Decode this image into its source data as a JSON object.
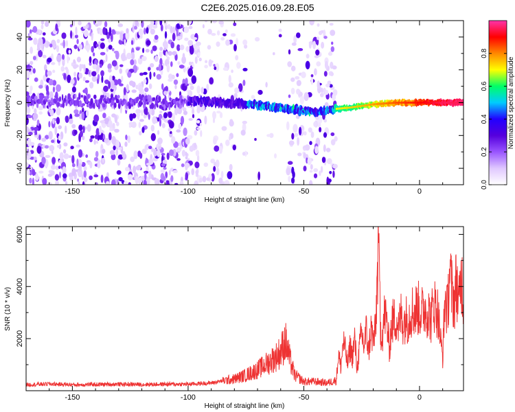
{
  "title": "C2E6.2025.016.09.28.E05",
  "chart_data": [
    {
      "type": "heatmap",
      "xlabel": "Height of straight line (km)",
      "ylabel": "Frequency (Hz)",
      "xlim": [
        -170,
        19
      ],
      "ylim": [
        -50,
        50
      ],
      "xticks": [
        -150,
        -100,
        -50,
        0
      ],
      "xtick_labels": [
        "-150",
        "-100",
        "-50",
        "0"
      ],
      "yticks": [
        -40,
        -20,
        0,
        20,
        40
      ],
      "ytick_labels": [
        "-40",
        "-20",
        "0",
        "20",
        "40"
      ],
      "colorbar": {
        "label": "Normalized spectral amplitude",
        "range": [
          0,
          1
        ],
        "ticks": [
          0.0,
          0.2,
          0.4,
          0.6,
          0.8
        ],
        "tick_labels": [
          "0.0",
          "0.2",
          "0.4",
          "0.6",
          "0.8"
        ],
        "colormap": [
          "#ffffff",
          "#e0c8ff",
          "#9955ff",
          "#5500dd",
          "#2200ff",
          "#00ccff",
          "#00ff66",
          "#ffff00",
          "#ff8800",
          "#ff0000",
          "#ff33aa"
        ]
      },
      "ridge": {
        "x": [
          -170,
          -140,
          -110,
          -95,
          -85,
          -75,
          -65,
          -55,
          -50,
          -44,
          -38,
          -30,
          -20,
          -10,
          0,
          10,
          19
        ],
        "y": [
          1,
          1,
          0,
          1,
          0,
          -1,
          -2,
          -4,
          -5,
          -6,
          -4,
          -3,
          -1,
          0,
          0,
          0,
          0
        ]
      },
      "grid": false
    },
    {
      "type": "line",
      "xlabel": "Height of straight line (km)",
      "ylabel": "SNR (10 * v/v)",
      "xlim": [
        -170,
        19
      ],
      "ylim": [
        0,
        6300
      ],
      "xticks": [
        -150,
        -100,
        -50,
        0
      ],
      "xtick_labels": [
        "-150",
        "-100",
        "-50",
        "0"
      ],
      "yticks": [
        2000,
        4000,
        6000
      ],
      "ytick_labels": [
        "2000",
        "4000",
        "6000"
      ],
      "series": [
        {
          "color": "#ee3333",
          "x": [
            -170,
            -160,
            -150,
            -140,
            -130,
            -120,
            -110,
            -100,
            -90,
            -85,
            -80,
            -75,
            -70,
            -65,
            -62,
            -60,
            -58,
            -56,
            -54,
            -50,
            -45,
            -40,
            -36,
            -35,
            -34,
            -33,
            -32,
            -31,
            -30,
            -29,
            -28,
            -27,
            -26,
            -25,
            -24,
            -23,
            -22,
            -21,
            -20,
            -19,
            -18,
            -17.5,
            -17,
            -16,
            -15,
            -14,
            -13,
            -12,
            -11,
            -10,
            -9,
            -8,
            -7,
            -6,
            -5,
            -4,
            -3,
            -2,
            -1,
            0,
            1,
            2,
            3,
            4,
            5,
            6,
            7,
            8,
            9,
            10,
            11,
            12,
            13,
            14,
            15,
            16,
            17,
            18,
            19
          ],
          "y": [
            230,
            260,
            230,
            240,
            250,
            240,
            250,
            250,
            300,
            380,
            450,
            600,
            800,
            1100,
            1300,
            1500,
            1900,
            1200,
            600,
            350,
            350,
            300,
            400,
            1400,
            900,
            1900,
            1500,
            1000,
            1700,
            1300,
            2000,
            800,
            1600,
            2200,
            1700,
            2300,
            1500,
            2400,
            1900,
            2300,
            5000,
            6200,
            2400,
            2200,
            3000,
            2500,
            1600,
            2600,
            2700,
            2800,
            2400,
            2900,
            2600,
            2800,
            2700,
            3000,
            3100,
            3000,
            3200,
            3100,
            3000,
            3200,
            3100,
            3000,
            2700,
            3400,
            3200,
            3000,
            2000,
            1300,
            3600,
            3000,
            4600,
            3800,
            3400,
            4300,
            3200,
            4500,
            3600
          ]
        }
      ],
      "grid": false
    }
  ]
}
